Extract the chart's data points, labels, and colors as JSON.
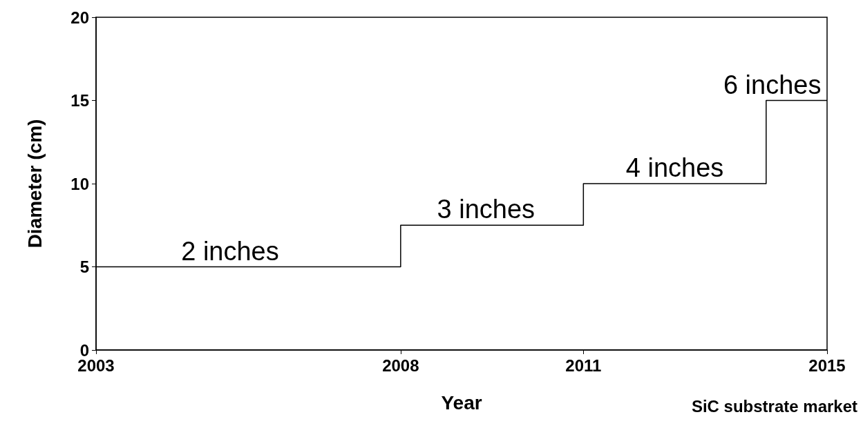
{
  "chart_data": {
    "type": "step",
    "xlabel": "Year",
    "ylabel": "Diameter (cm)",
    "x": [
      2003,
      2008,
      2011,
      2014,
      2015
    ],
    "series": [
      {
        "color": "#000000",
        "values": [
          5,
          7.5,
          10,
          15,
          15
        ]
      }
    ],
    "xlim": [
      2003,
      2015
    ],
    "xticks": [
      2003,
      2008,
      2011,
      2015
    ],
    "ylim": [
      0,
      20
    ],
    "yticks": [
      0,
      5,
      10,
      15,
      20
    ],
    "marker": "none",
    "line_style": "solid",
    "annotations": [
      {
        "text": "2 inches",
        "x": 2005.2,
        "y": 5
      },
      {
        "text": "3 inches",
        "x": 2009.4,
        "y": 7.5
      },
      {
        "text": "4 inches",
        "x": 2012.5,
        "y": 10
      },
      {
        "text": "6 inches",
        "x": 2014.1,
        "y": 15
      },
      "SiC substrate market"
    ]
  }
}
